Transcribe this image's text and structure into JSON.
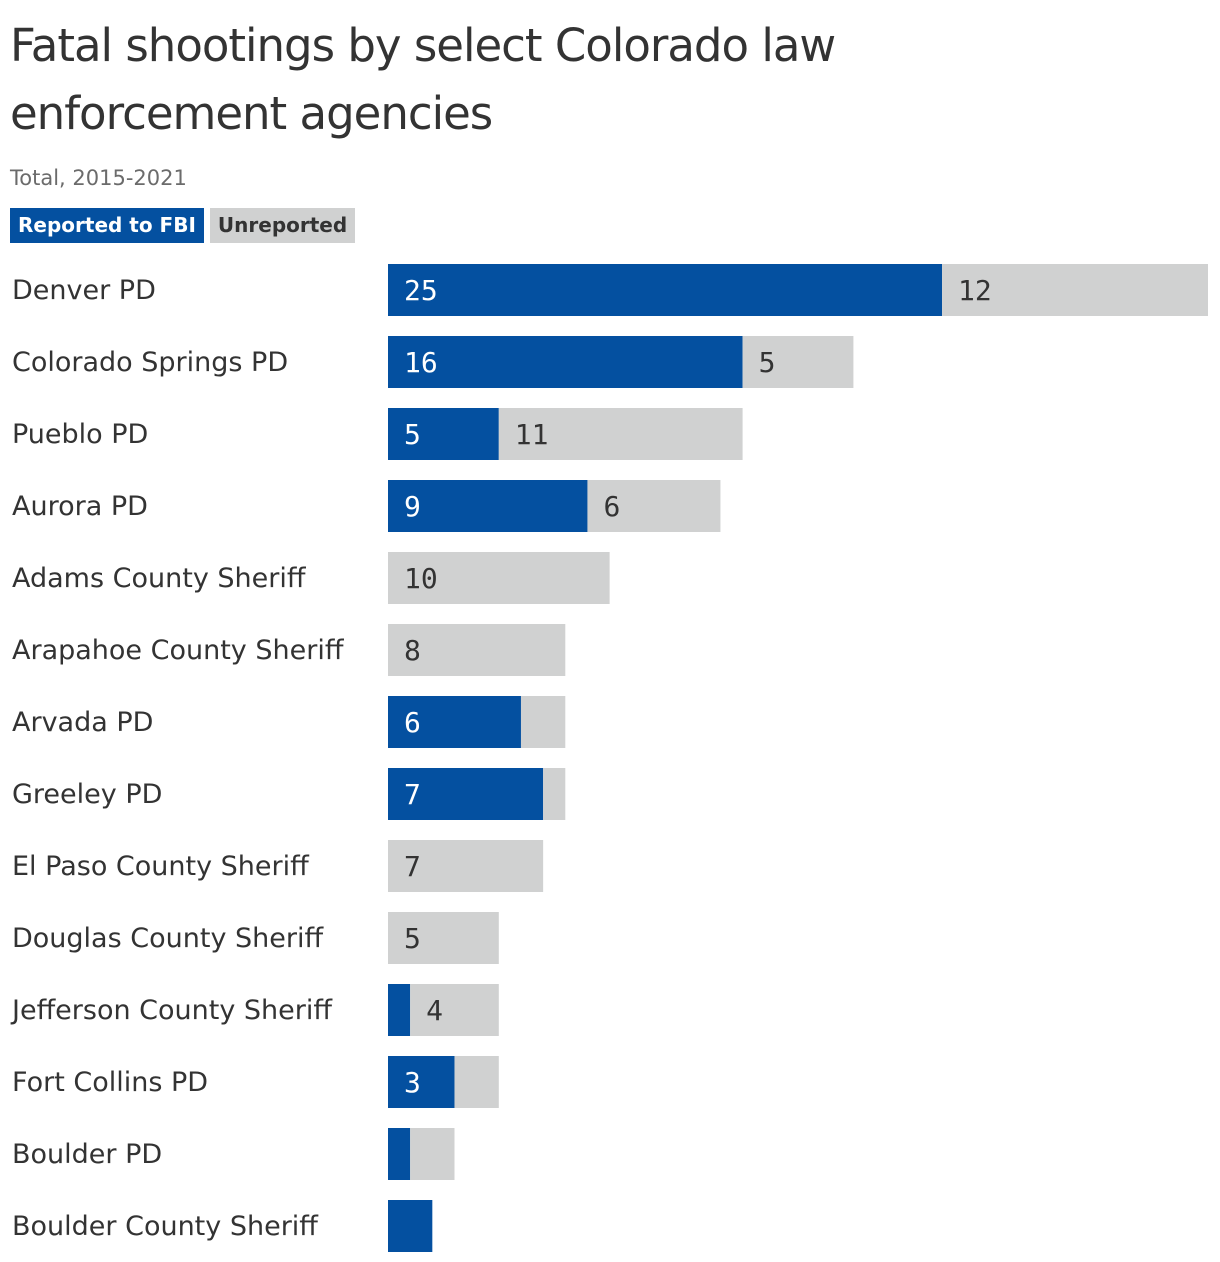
{
  "chart_data": {
    "type": "bar",
    "orientation": "horizontal",
    "stacked": true,
    "title": "Fatal shootings by select Colorado law enforcement agencies",
    "subtitle": "Total, 2015-2021",
    "legend": [
      "Reported to FBI",
      "Unreported"
    ],
    "legend_placement": "top-left",
    "grid": false,
    "xlim": [
      0,
      37
    ],
    "categories": [
      "Denver PD",
      "Colorado Springs PD",
      "Pueblo PD",
      "Aurora PD",
      "Adams County Sheriff",
      "Arapahoe County Sheriff",
      "Arvada PD",
      "Greeley PD",
      "El Paso County Sheriff",
      "Douglas County Sheriff",
      "Jefferson County Sheriff",
      "Fort Collins PD",
      "Boulder PD",
      "Boulder County Sheriff"
    ],
    "series": [
      {
        "name": "Reported to FBI",
        "color": "#0450a0",
        "label_color": "#ffffff",
        "values": [
          25,
          16,
          5,
          9,
          0,
          0,
          6,
          7,
          0,
          0,
          1,
          3,
          1,
          2
        ],
        "labels": [
          "25",
          "16",
          "5",
          "9",
          "",
          "",
          "6",
          "7",
          "",
          "",
          "",
          "3",
          "",
          ""
        ]
      },
      {
        "name": "Unreported",
        "color": "#d0d1d1",
        "label_color": "#333333",
        "values": [
          12,
          5,
          11,
          6,
          10,
          8,
          2,
          1,
          7,
          5,
          4,
          2,
          2,
          0
        ],
        "labels": [
          "12",
          "5",
          "11",
          "6",
          "10",
          "8",
          "",
          "",
          "7",
          "5",
          "4",
          "",
          "",
          ""
        ]
      }
    ]
  }
}
